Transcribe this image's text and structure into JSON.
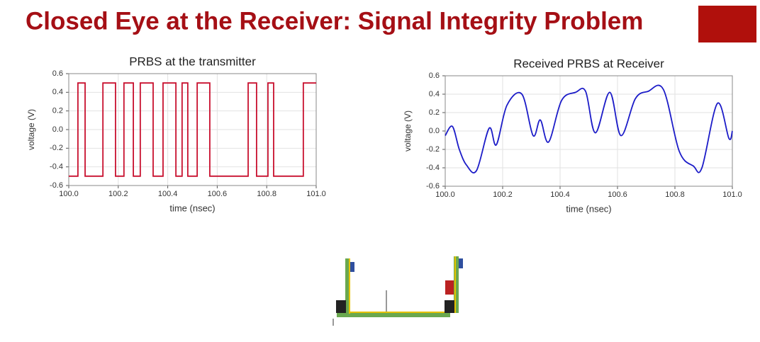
{
  "title": "Closed Eye at the Receiver: Signal Integrity Problem",
  "chart_data": [
    {
      "type": "line",
      "title": "PRBS at the transmitter",
      "x_label": "time (nsec)",
      "y_label": "voltage (V)",
      "xlim": [
        100.0,
        101.0
      ],
      "xticks": [
        {
          "value": 100,
          "label": "100.0"
        },
        100.2,
        100.4,
        100.6,
        100.8,
        {
          "value": 101,
          "label": "101.0"
        }
      ],
      "ylim": [
        -0.6,
        0.6
      ],
      "yticks": [
        -0.6,
        -0.4,
        -0.2,
        {
          "value": 0,
          "label": "0.0"
        },
        0.2,
        0.4,
        0.6
      ],
      "grid": true,
      "series": [
        {
          "color": "#c8102e",
          "x": [
            100.0,
            100.037,
            100.037,
            100.066,
            100.066,
            100.138,
            100.138,
            100.189,
            100.189,
            100.223,
            100.223,
            100.261,
            100.261,
            100.289,
            100.289,
            100.341,
            100.341,
            100.381,
            100.381,
            100.433,
            100.433,
            100.458,
            100.458,
            100.481,
            100.481,
            100.519,
            100.519,
            100.57,
            100.57,
            100.725,
            100.725,
            100.759,
            100.759,
            100.805,
            100.805,
            100.828,
            100.828,
            100.948,
            100.948,
            101.0
          ],
          "values": [
            -0.5,
            -0.5,
            0.5,
            0.5,
            -0.5,
            -0.5,
            0.5,
            0.5,
            -0.5,
            -0.5,
            0.5,
            0.5,
            -0.5,
            -0.5,
            0.5,
            0.5,
            -0.5,
            -0.5,
            0.5,
            0.5,
            -0.5,
            -0.5,
            0.5,
            0.5,
            -0.5,
            -0.5,
            0.5,
            0.5,
            -0.5,
            -0.5,
            0.5,
            0.5,
            -0.5,
            -0.5,
            0.5,
            0.5,
            -0.5,
            -0.5,
            0.5,
            0.5
          ]
        }
      ]
    },
    {
      "type": "line",
      "title": "Received PRBS at Receiver",
      "x_label": "time (nsec)",
      "y_label": "voltage (V)",
      "xlim": [
        100.0,
        101.0
      ],
      "xticks": [
        {
          "value": 100,
          "label": "100.0"
        },
        100.2,
        100.4,
        100.6,
        100.8,
        {
          "value": 101,
          "label": "101.0"
        }
      ],
      "ylim": [
        -0.6,
        0.6
      ],
      "yticks": [
        -0.6,
        -0.4,
        -0.2,
        {
          "value": 0,
          "label": "0.0"
        },
        0.2,
        0.4,
        0.6
      ],
      "grid": true,
      "series": [
        {
          "color": "#1c1cc8",
          "x": [
            100.0,
            100.025,
            100.049,
            100.074,
            100.109,
            100.153,
            100.178,
            100.215,
            100.267,
            100.306,
            100.331,
            100.36,
            100.405,
            100.454,
            100.489,
            100.523,
            100.573,
            100.612,
            100.662,
            100.706,
            100.76,
            100.815,
            100.864,
            100.894,
            100.948,
            100.988,
            101.0
          ],
          "values": [
            -0.05,
            0.05,
            -0.2,
            -0.37,
            -0.43,
            0.03,
            -0.15,
            0.28,
            0.4,
            -0.05,
            0.12,
            -0.12,
            0.33,
            0.42,
            0.43,
            -0.02,
            0.42,
            -0.05,
            0.35,
            0.43,
            0.45,
            -0.22,
            -0.38,
            -0.4,
            0.3,
            -0.08,
            0.0
          ]
        }
      ]
    }
  ]
}
